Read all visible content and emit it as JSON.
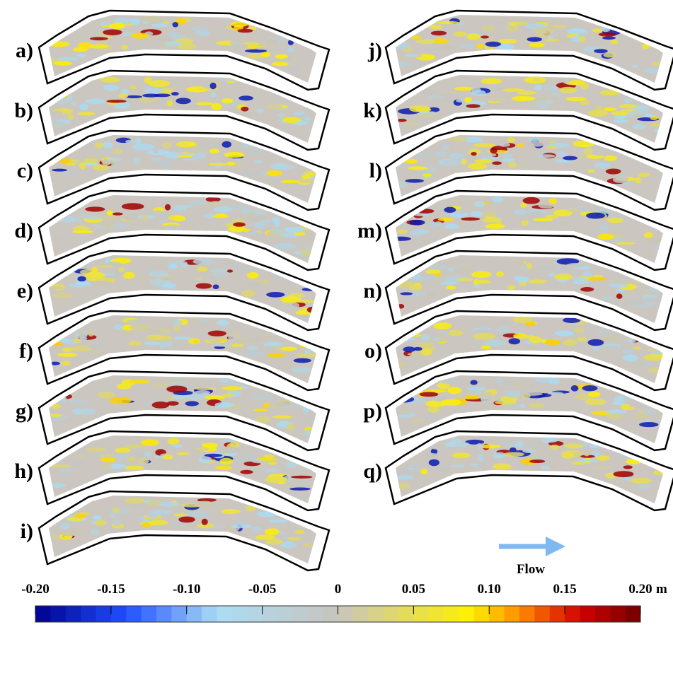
{
  "panels": [
    {
      "label": "a)"
    },
    {
      "label": "b)"
    },
    {
      "label": "c)"
    },
    {
      "label": "d)"
    },
    {
      "label": "e)"
    },
    {
      "label": "f)"
    },
    {
      "label": "g)"
    },
    {
      "label": "h)"
    },
    {
      "label": "i)"
    },
    {
      "label": "j)"
    },
    {
      "label": "k)"
    },
    {
      "label": "l)"
    },
    {
      "label": "m)"
    },
    {
      "label": "n)"
    },
    {
      "label": "o)"
    },
    {
      "label": "p)"
    },
    {
      "label": "q)"
    }
  ],
  "flow_label": "Flow",
  "colorbar": {
    "range": [
      -0.2,
      0.2
    ],
    "unit": "m",
    "ticks": [
      {
        "value": -0.2,
        "label": "-0.20"
      },
      {
        "value": -0.15,
        "label": "-0.15"
      },
      {
        "value": -0.1,
        "label": "-0.10"
      },
      {
        "value": -0.05,
        "label": "-0.05"
      },
      0,
      0.05,
      {
        "value": 0.1,
        "label": "0.10"
      },
      0.15,
      {
        "value": 0.2,
        "label": "0.20"
      }
    ]
  }
}
